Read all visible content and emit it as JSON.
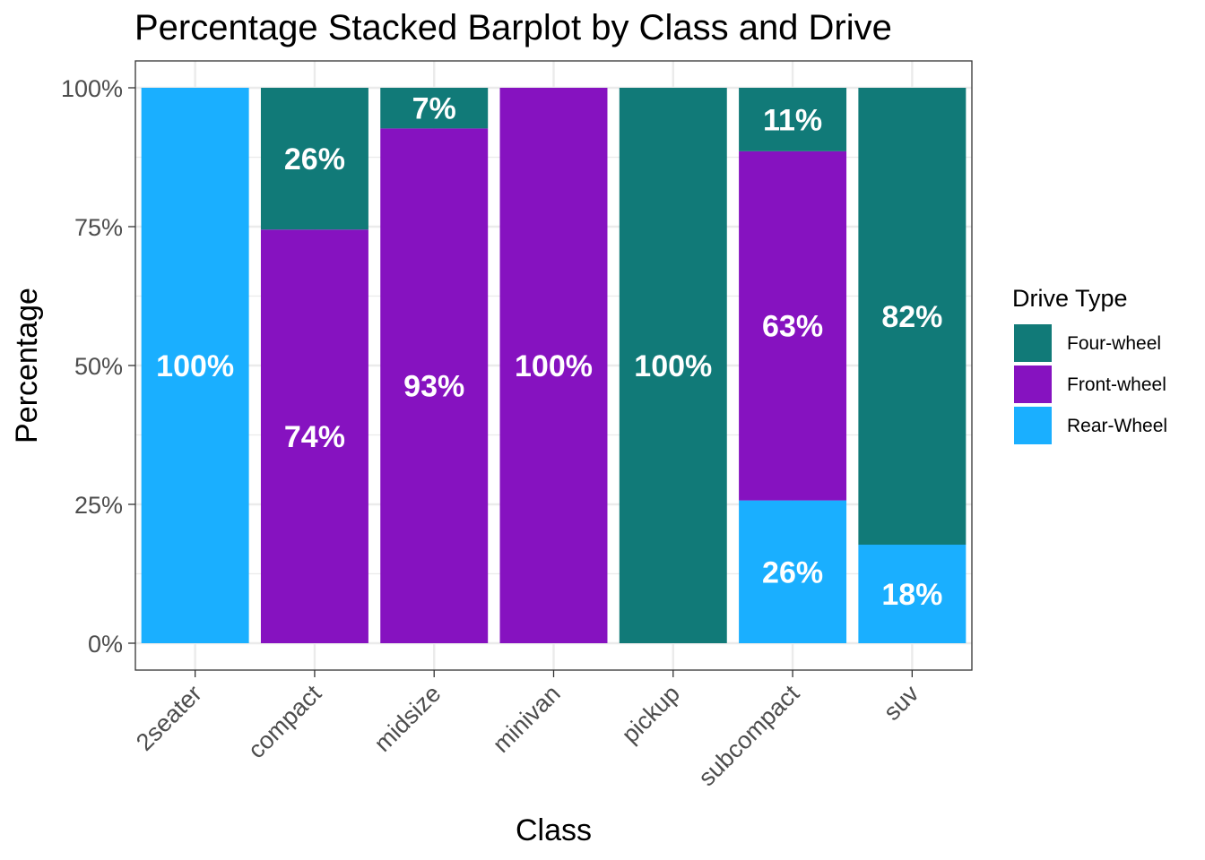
{
  "chart_data": {
    "type": "bar",
    "stacked": "percent",
    "title": "Percentage Stacked Barplot by Class and Drive",
    "xlabel": "Class",
    "ylabel": "Percentage",
    "ylim": [
      0,
      1
    ],
    "yticks": [
      0,
      0.25,
      0.5,
      0.75,
      1.0
    ],
    "ytick_labels": [
      "0%",
      "25%",
      "50%",
      "75%",
      "100%"
    ],
    "grid": true,
    "legend_position": "right",
    "legend_title": "Drive Type",
    "categories": [
      "2seater",
      "compact",
      "midsize",
      "minivan",
      "pickup",
      "subcompact",
      "suv"
    ],
    "series": [
      {
        "name": "Four-wheel",
        "color": "#117A78",
        "values": [
          0,
          0.2553,
          0.0732,
          0,
          1.0,
          0.1143,
          0.8226
        ],
        "labels": [
          "",
          "26%",
          "7%",
          "",
          "100%",
          "11%",
          "82%"
        ]
      },
      {
        "name": "Front-wheel",
        "color": "#8612C0",
        "values": [
          0,
          0.7447,
          0.9268,
          1.0,
          0,
          0.6286,
          0
        ],
        "labels": [
          "",
          "74%",
          "93%",
          "100%",
          "",
          "63%",
          ""
        ]
      },
      {
        "name": "Rear-Wheel",
        "color": "#1AAFFF",
        "values": [
          1.0,
          0,
          0,
          0,
          0,
          0.2571,
          0.1774
        ],
        "labels": [
          "100%",
          "",
          "",
          "",
          "",
          "26%",
          "18%"
        ]
      }
    ]
  }
}
